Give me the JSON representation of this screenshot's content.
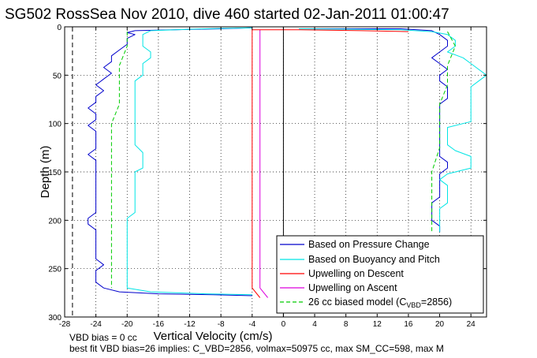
{
  "chart_data": {
    "type": "line",
    "title": "SG502 RossSea Nov 2010, dive 460 started 02-Jan-2011 01:00:47",
    "xlabel": "Vertical Velocity (cm/s)",
    "ylabel": "Depth (m)",
    "xlim": [
      -28,
      26
    ],
    "ylim": [
      300,
      0
    ],
    "y_reversed": true,
    "grid": true,
    "xticks": [
      "-28",
      "-24",
      "-20",
      "-16",
      "-12",
      "-8",
      "-4",
      "0",
      "4",
      "8",
      "12",
      "16",
      "20",
      "24"
    ],
    "xtick_values": [
      -28,
      -24,
      -20,
      -16,
      -12,
      -8,
      -4,
      0,
      4,
      8,
      12,
      16,
      20,
      24
    ],
    "yticks": [
      "0",
      "50",
      "100",
      "150",
      "200",
      "250",
      "300"
    ],
    "ytick_values": [
      0,
      50,
      100,
      150,
      200,
      250,
      300
    ],
    "legend_position": "bottom-right",
    "legend": {
      "entries": [
        {
          "label": "Based on Pressure Change",
          "color": "#0000cc",
          "dash": false
        },
        {
          "label": "Based on Buoyancy and Pitch",
          "color": "#00e5e5",
          "dash": false
        },
        {
          "label": "Upwelling on Descent",
          "color": "#ff0000",
          "dash": false
        },
        {
          "label": "Upwelling on Ascent",
          "color": "#dd00dd",
          "dash": false
        },
        {
          "label_prefix": "26 cc biased model (C",
          "label_sub": "VBD",
          "label_suffix": "=2856)",
          "color": "#00cc00",
          "dash": true
        }
      ]
    },
    "reference_lines": [
      {
        "x": 0,
        "style": "solid",
        "color": "#000000"
      },
      {
        "x": -27,
        "style": "dashed",
        "color": "#000000"
      }
    ],
    "series": [
      {
        "key": "pressure_descent",
        "color": "#0000cc",
        "points": [
          [
            -4,
            1
          ],
          [
            -8,
            2
          ],
          [
            -14,
            3
          ],
          [
            -19,
            4
          ],
          [
            -20,
            6
          ],
          [
            -19,
            8
          ],
          [
            -20,
            12
          ],
          [
            -20,
            18
          ],
          [
            -21,
            24
          ],
          [
            -22,
            30
          ],
          [
            -22,
            36
          ],
          [
            -23,
            42
          ],
          [
            -22,
            48
          ],
          [
            -23,
            54
          ],
          [
            -24,
            60
          ],
          [
            -23,
            66
          ],
          [
            -24,
            72
          ],
          [
            -24,
            78
          ],
          [
            -25,
            84
          ],
          [
            -24,
            90
          ],
          [
            -24,
            96
          ],
          [
            -25,
            102
          ],
          [
            -24,
            108
          ],
          [
            -24,
            114
          ],
          [
            -24,
            120
          ],
          [
            -24,
            126
          ],
          [
            -25,
            132
          ],
          [
            -24,
            138
          ],
          [
            -24,
            144
          ],
          [
            -24,
            150
          ],
          [
            -24,
            156
          ],
          [
            -24,
            162
          ],
          [
            -24,
            168
          ],
          [
            -24,
            174
          ],
          [
            -24,
            180
          ],
          [
            -24,
            186
          ],
          [
            -24,
            192
          ],
          [
            -25,
            198
          ],
          [
            -25,
            204
          ],
          [
            -24,
            210
          ],
          [
            -24,
            216
          ],
          [
            -24,
            222
          ],
          [
            -24,
            228
          ],
          [
            -24,
            234
          ],
          [
            -24,
            240
          ],
          [
            -23,
            246
          ],
          [
            -24,
            252
          ],
          [
            -24,
            258
          ],
          [
            -24,
            264
          ],
          [
            -23,
            270
          ],
          [
            -21,
            274
          ],
          [
            -16,
            276
          ],
          [
            -9,
            277
          ],
          [
            -4,
            278
          ]
        ]
      },
      {
        "key": "buoyancy_descent",
        "color": "#00e5e5",
        "points": [
          [
            -4,
            1
          ],
          [
            -10,
            2
          ],
          [
            -17,
            4
          ],
          [
            -18,
            8
          ],
          [
            -18,
            14
          ],
          [
            -18,
            20
          ],
          [
            -17,
            26
          ],
          [
            -17,
            32
          ],
          [
            -18,
            38
          ],
          [
            -18,
            44
          ],
          [
            -18,
            50
          ],
          [
            -19,
            56
          ],
          [
            -19,
            62
          ],
          [
            -19,
            68
          ],
          [
            -19,
            74
          ],
          [
            -19,
            80
          ],
          [
            -19,
            86
          ],
          [
            -19,
            92
          ],
          [
            -19,
            98
          ],
          [
            -19,
            104
          ],
          [
            -19,
            110
          ],
          [
            -19,
            116
          ],
          [
            -19,
            122
          ],
          [
            -18,
            130
          ],
          [
            -18,
            138
          ],
          [
            -18,
            146
          ],
          [
            -19,
            150
          ],
          [
            -19,
            156
          ],
          [
            -19,
            162
          ],
          [
            -19,
            168
          ],
          [
            -19,
            174
          ],
          [
            -19,
            180
          ],
          [
            -19,
            186
          ],
          [
            -19,
            192
          ],
          [
            -20,
            198
          ],
          [
            -20,
            204
          ],
          [
            -20,
            210
          ],
          [
            -20,
            216
          ],
          [
            -20,
            222
          ],
          [
            -20,
            228
          ],
          [
            -20,
            234
          ],
          [
            -20,
            240
          ],
          [
            -20,
            246
          ],
          [
            -20,
            252
          ],
          [
            -20,
            258
          ],
          [
            -20,
            264
          ],
          [
            -20,
            270
          ],
          [
            -17,
            274
          ],
          [
            -10,
            276
          ],
          [
            -4,
            277
          ]
        ]
      },
      {
        "key": "model_descent",
        "color": "#00cc00",
        "dash": true,
        "points": [
          [
            -20,
            5
          ],
          [
            -20,
            20
          ],
          [
            -21,
            40
          ],
          [
            -21,
            60
          ],
          [
            -21,
            80
          ],
          [
            -22,
            100
          ],
          [
            -22,
            125
          ],
          [
            -22,
            150
          ],
          [
            -22,
            175
          ],
          [
            -22,
            200
          ],
          [
            -22,
            225
          ],
          [
            -22,
            250
          ],
          [
            -22,
            270
          ]
        ]
      },
      {
        "key": "upwelling_descent",
        "color": "#ff0000",
        "points": [
          [
            -4,
            3
          ],
          [
            -4,
            10
          ],
          [
            -4,
            20
          ],
          [
            -4,
            30
          ],
          [
            -4,
            40
          ],
          [
            -4,
            50
          ],
          [
            -4,
            60
          ],
          [
            -4,
            70
          ],
          [
            -4,
            80
          ],
          [
            -4,
            90
          ],
          [
            -4,
            100
          ],
          [
            -4,
            110
          ],
          [
            -4,
            120
          ],
          [
            -4,
            130
          ],
          [
            -4,
            140
          ],
          [
            -4,
            150
          ],
          [
            -4,
            160
          ],
          [
            -4,
            170
          ],
          [
            -4,
            180
          ],
          [
            -4,
            190
          ],
          [
            -4,
            200
          ],
          [
            -4,
            210
          ],
          [
            -4,
            220
          ],
          [
            -4,
            230
          ],
          [
            -4,
            240
          ],
          [
            -4,
            250
          ],
          [
            -4,
            260
          ],
          [
            -4,
            270
          ],
          [
            -3,
            280
          ]
        ]
      },
      {
        "key": "upwelling_ascent",
        "color": "#dd00dd",
        "points": [
          [
            -3,
            3
          ],
          [
            -3,
            10
          ],
          [
            -3,
            20
          ],
          [
            -3,
            30
          ],
          [
            -3,
            40
          ],
          [
            -3,
            50
          ],
          [
            -3,
            60
          ],
          [
            -3,
            70
          ],
          [
            -3,
            80
          ],
          [
            -3,
            90
          ],
          [
            -3,
            100
          ],
          [
            -3,
            110
          ],
          [
            -3,
            120
          ],
          [
            -3,
            130
          ],
          [
            -3,
            140
          ],
          [
            -3,
            150
          ],
          [
            -3,
            160
          ],
          [
            -3,
            170
          ],
          [
            -3,
            180
          ],
          [
            -3,
            190
          ],
          [
            -3,
            200
          ],
          [
            -3,
            210
          ],
          [
            -3,
            220
          ],
          [
            -3,
            230
          ],
          [
            -3,
            240
          ],
          [
            -3,
            250
          ],
          [
            -3,
            260
          ],
          [
            -3,
            270
          ],
          [
            -2,
            280
          ]
        ]
      },
      {
        "key": "pressure_ascent",
        "color": "#0000cc",
        "points": [
          [
            2,
            2
          ],
          [
            15,
            2
          ],
          [
            19,
            4
          ],
          [
            20,
            8
          ],
          [
            21,
            14
          ],
          [
            21,
            20
          ],
          [
            20,
            26
          ],
          [
            19,
            32
          ],
          [
            20,
            38
          ],
          [
            21,
            44
          ],
          [
            20,
            50
          ],
          [
            20,
            56
          ],
          [
            21,
            62
          ],
          [
            21,
            68
          ],
          [
            21,
            74
          ],
          [
            20,
            80
          ],
          [
            20,
            86
          ],
          [
            20,
            92
          ],
          [
            20,
            98
          ],
          [
            20,
            104
          ],
          [
            20,
            110
          ],
          [
            20,
            116
          ],
          [
            20,
            122
          ],
          [
            20,
            128
          ],
          [
            20,
            134
          ],
          [
            21,
            140
          ],
          [
            21,
            146
          ],
          [
            20,
            152
          ],
          [
            20,
            158
          ],
          [
            20,
            164
          ],
          [
            20,
            170
          ],
          [
            20,
            176
          ],
          [
            19,
            182
          ],
          [
            19,
            188
          ],
          [
            19,
            194
          ],
          [
            19,
            200
          ],
          [
            20,
            206
          ],
          [
            20,
            212
          ]
        ]
      },
      {
        "key": "buoyancy_ascent",
        "color": "#00e5e5",
        "points": [
          [
            2,
            2
          ],
          [
            15,
            3
          ],
          [
            19,
            5
          ],
          [
            21,
            8
          ],
          [
            22,
            14
          ],
          [
            22,
            20
          ],
          [
            21,
            26
          ],
          [
            23,
            32
          ],
          [
            24,
            38
          ],
          [
            25,
            44
          ],
          [
            26,
            50
          ],
          [
            25,
            56
          ],
          [
            24,
            62
          ],
          [
            24,
            68
          ],
          [
            24,
            74
          ],
          [
            24,
            80
          ],
          [
            24,
            86
          ],
          [
            24,
            92
          ],
          [
            24,
            98
          ],
          [
            21,
            104
          ],
          [
            21,
            110
          ],
          [
            21,
            116
          ],
          [
            21,
            122
          ],
          [
            22,
            128
          ],
          [
            24,
            134
          ],
          [
            24,
            140
          ],
          [
            24,
            146
          ],
          [
            21,
            152
          ],
          [
            20,
            158
          ],
          [
            21,
            164
          ],
          [
            21,
            170
          ],
          [
            21,
            176
          ],
          [
            21,
            182
          ],
          [
            20,
            188
          ],
          [
            20,
            194
          ],
          [
            20,
            200
          ],
          [
            20,
            206
          ],
          [
            20,
            212
          ]
        ]
      },
      {
        "key": "model_ascent",
        "color": "#00cc00",
        "dash": true,
        "points": [
          [
            21,
            5
          ],
          [
            22,
            20
          ],
          [
            21,
            40
          ],
          [
            21,
            60
          ],
          [
            20,
            80
          ],
          [
            20,
            100
          ],
          [
            20,
            125
          ],
          [
            19,
            150
          ],
          [
            19,
            175
          ],
          [
            19,
            200
          ],
          [
            19,
            212
          ]
        ]
      },
      {
        "key": "surface_spike",
        "color": "#ff0000",
        "points": [
          [
            -4,
            3
          ],
          [
            2,
            3
          ],
          [
            10,
            4
          ],
          [
            16,
            5
          ]
        ]
      }
    ]
  },
  "notes": {
    "vbd_bias": "VBD bias = 0 cc",
    "best_fit": "best fit VBD bias=26 implies: C_VBD=2856, volmax=50975 cc, max SM_CC=598, max M"
  }
}
